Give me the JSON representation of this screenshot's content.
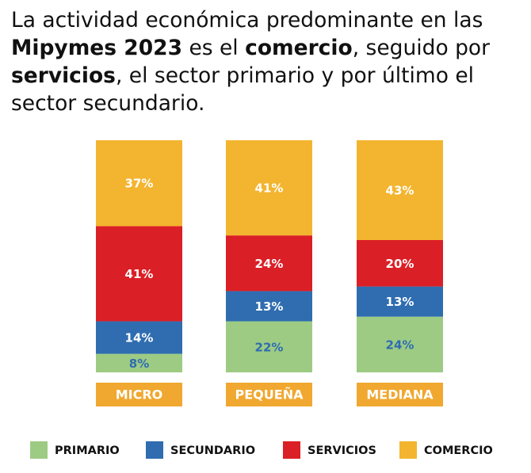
{
  "chart_data": {
    "type": "stacked_bar",
    "title": [
      "La actividad económica predominante en las ",
      "Mipymes 2023",
      " es el ",
      "comercio",
      ", seguido por ",
      "servicios",
      ", el sector primario y por último el sector secundario."
    ],
    "categories": [
      "MICRO",
      "PEQUEÑA",
      "MEDIANA"
    ],
    "ylim": [
      0,
      100
    ],
    "series": [
      {
        "name": "PRIMARIO",
        "color": "#9dcb84",
        "label_color": "#2f6db0",
        "values": [
          8,
          22,
          24
        ],
        "value_labels": [
          "8%",
          "22%",
          "24%"
        ]
      },
      {
        "name": "SECUNDARIO",
        "color": "#2f6db0",
        "label_color": "#ffffff",
        "values": [
          14,
          13,
          13
        ],
        "value_labels": [
          "14%",
          "13%",
          "13%"
        ]
      },
      {
        "name": "SERVICIOS",
        "color": "#db1f26",
        "label_color": "#ffffff",
        "values": [
          41,
          24,
          20
        ],
        "value_labels": [
          "41%",
          "24%",
          "20%"
        ]
      },
      {
        "name": "COMERCIO",
        "color": "#f3b52f",
        "label_color": "#ffffff",
        "values": [
          37,
          41,
          43
        ],
        "value_labels": [
          "37%",
          "41%",
          "43%"
        ]
      }
    ]
  }
}
